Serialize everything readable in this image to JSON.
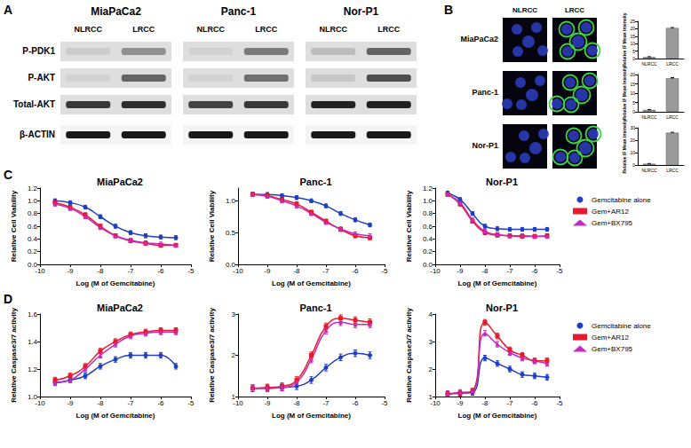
{
  "panel_labels": [
    "A",
    "B",
    "C",
    "D"
  ],
  "blot": {
    "cell_lines": [
      "MiaPaCa2",
      "Panc-1",
      "Nor-P1"
    ],
    "lanes": [
      "NLRCC",
      "LRCC"
    ],
    "rows": [
      "P-PDK1",
      "P-AKT",
      "Total-AKT",
      "β-ACTIN"
    ],
    "band_intensity": [
      [
        [
          0.08,
          0.35
        ],
        [
          0.05,
          0.55
        ],
        [
          0.75,
          0.8
        ],
        [
          0.9,
          0.9
        ]
      ],
      [
        [
          0.05,
          0.45
        ],
        [
          0.05,
          0.5
        ],
        [
          0.7,
          0.75
        ],
        [
          0.9,
          0.9
        ]
      ],
      [
        [
          0.15,
          0.55
        ],
        [
          0.1,
          0.65
        ],
        [
          0.85,
          0.85
        ],
        [
          0.9,
          0.9
        ]
      ]
    ]
  },
  "images": {
    "rows": [
      "MiaPaCa2",
      "Panc-1",
      "Nor-P1"
    ],
    "columns": [
      "NLRCC",
      "LRCC"
    ]
  },
  "chart_data": [
    {
      "type": "bar",
      "categories": [
        "NLRCC",
        "LRCC"
      ],
      "values": [
        1,
        20.5
      ],
      "errors": [
        0.2,
        0.3
      ],
      "color": "#9a9a9a",
      "ylabel": "Relative IF Mean Intensity",
      "ylim": [
        0,
        25
      ],
      "yticks": [
        0,
        5,
        10,
        15,
        20,
        25
      ],
      "grid": false
    },
    {
      "type": "bar",
      "categories": [
        "NLRCC",
        "LRCC"
      ],
      "values": [
        1,
        18
      ],
      "errors": [
        0.2,
        0.3
      ],
      "color": "#9a9a9a",
      "ylabel": "Relative IF Mean Intensity",
      "ylim": [
        0,
        20
      ],
      "yticks": [
        0,
        5,
        10,
        15,
        20
      ],
      "grid": false
    },
    {
      "type": "bar",
      "categories": [
        "NLRCC",
        "LRCC"
      ],
      "values": [
        1,
        26
      ],
      "errors": [
        0.2,
        0.3
      ],
      "color": "#9a9a9a",
      "ylabel": "Relative IF Mean Intensity",
      "ylim": [
        0,
        30
      ],
      "yticks": [
        0,
        10,
        20,
        30
      ],
      "grid": false
    },
    {
      "type": "line",
      "title": "MiaPaCa2",
      "xlabel": "Log (M of Gemcitabine)",
      "ylabel": "Relative Cell Viability",
      "x": [
        -9.5,
        -9,
        -8.5,
        -8,
        -7.5,
        -7,
        -6.5,
        -6,
        -5.5
      ],
      "xlim": [
        -10,
        -5
      ],
      "xticks": [
        -10,
        -9,
        -8,
        -7,
        -6,
        -5
      ],
      "ylim": [
        0,
        1.2
      ],
      "yticks": [
        {
          "value": 0,
          "label": "0.0"
        },
        {
          "value": 0.2,
          "label": "0.2"
        },
        {
          "value": 0.4,
          "label": "0.4"
        },
        {
          "value": 0.6,
          "label": "0.6"
        },
        {
          "value": 0.8,
          "label": "0.8"
        },
        {
          "value": 1,
          "label": "1.0"
        },
        {
          "value": 1.2,
          "label": "1.2"
        }
      ],
      "grid": false,
      "series": [
        {
          "name": "Gemcitabine alone",
          "color": "#1f3fbf",
          "marker": "circle",
          "values": [
            1.0,
            0.97,
            0.9,
            0.75,
            0.6,
            0.5,
            0.45,
            0.43,
            0.42
          ],
          "errors": [
            0.03,
            0.03,
            0.03,
            0.03,
            0.03,
            0.03,
            0.03,
            0.03,
            0.03
          ]
        },
        {
          "name": "Gem+AR12",
          "color": "#e8192c",
          "marker": "square",
          "values": [
            0.97,
            0.9,
            0.78,
            0.6,
            0.45,
            0.37,
            0.33,
            0.3,
            0.3
          ],
          "errors": [
            0.03,
            0.03,
            0.03,
            0.03,
            0.03,
            0.03,
            0.03,
            0.03,
            0.03
          ]
        },
        {
          "name": "Gem+BX795",
          "color": "#c42bc4",
          "marker": "triangle",
          "values": [
            0.95,
            0.88,
            0.75,
            0.58,
            0.45,
            0.38,
            0.34,
            0.32,
            0.3
          ],
          "errors": [
            0.03,
            0.03,
            0.03,
            0.03,
            0.03,
            0.03,
            0.03,
            0.03,
            0.03
          ]
        }
      ]
    },
    {
      "type": "line",
      "title": "Panc-1",
      "xlabel": "Log (M of Gemcitabine)",
      "ylabel": "Relative Cell Viability",
      "x": [
        -9.5,
        -9,
        -8.5,
        -8,
        -7.5,
        -7,
        -6.5,
        -6,
        -5.5
      ],
      "xlim": [
        -10,
        -5
      ],
      "xticks": [
        -10,
        -9,
        -8,
        -7,
        -6,
        -5
      ],
      "ylim": [
        0,
        1.2
      ],
      "yticks": [
        {
          "value": 0,
          "label": "0.0"
        },
        {
          "value": 0.5,
          "label": "0.5"
        },
        {
          "value": 1,
          "label": "1.0"
        }
      ],
      "grid": false,
      "series": [
        {
          "name": "Gemcitabine alone",
          "color": "#1f3fbf",
          "marker": "circle",
          "values": [
            1.1,
            1.1,
            1.08,
            1.05,
            1.0,
            0.92,
            0.8,
            0.7,
            0.62
          ],
          "errors": [
            0.03,
            0.03,
            0.03,
            0.03,
            0.03,
            0.03,
            0.03,
            0.03,
            0.03
          ]
        },
        {
          "name": "Gem+AR12",
          "color": "#e8192c",
          "marker": "square",
          "values": [
            1.1,
            1.08,
            1.02,
            0.95,
            0.82,
            0.68,
            0.55,
            0.45,
            0.42
          ],
          "errors": [
            0.03,
            0.03,
            0.03,
            0.03,
            0.03,
            0.03,
            0.03,
            0.03,
            0.03
          ]
        },
        {
          "name": "Gem+BX795",
          "color": "#c42bc4",
          "marker": "triangle",
          "values": [
            1.1,
            1.07,
            1.0,
            0.92,
            0.8,
            0.66,
            0.56,
            0.48,
            0.45
          ],
          "errors": [
            0.03,
            0.03,
            0.03,
            0.03,
            0.03,
            0.03,
            0.03,
            0.03,
            0.03
          ]
        }
      ]
    },
    {
      "type": "line",
      "title": "Nor-P1",
      "xlabel": "Log (M of Gemcitabine)",
      "ylabel": "Relative Cell Viability",
      "x": [
        -9.5,
        -9,
        -8.5,
        -8,
        -7.5,
        -7,
        -6.5,
        -6,
        -5.5
      ],
      "xlim": [
        -10,
        -5
      ],
      "xticks": [
        -10,
        -9,
        -8,
        -7,
        -6,
        -5
      ],
      "ylim": [
        0,
        1.2
      ],
      "yticks": [
        {
          "value": 0,
          "label": "0.0"
        },
        {
          "value": 0.2,
          "label": "0.2"
        },
        {
          "value": 0.4,
          "label": "0.4"
        },
        {
          "value": 0.6,
          "label": "0.6"
        },
        {
          "value": 0.8,
          "label": "0.8"
        },
        {
          "value": 1,
          "label": "1.0"
        },
        {
          "value": 1.2,
          "label": "1.2"
        }
      ],
      "grid": false,
      "legend": "right",
      "series": [
        {
          "name": "Gemcitabine alone",
          "color": "#1f3fbf",
          "marker": "circle",
          "values": [
            1.12,
            1.02,
            0.8,
            0.6,
            0.56,
            0.55,
            0.55,
            0.55,
            0.55
          ],
          "errors": [
            0.03,
            0.03,
            0.03,
            0.03,
            0.03,
            0.03,
            0.03,
            0.03,
            0.03
          ]
        },
        {
          "name": "Gem+AR12",
          "color": "#e8192c",
          "marker": "square",
          "values": [
            1.1,
            0.95,
            0.68,
            0.5,
            0.46,
            0.45,
            0.44,
            0.44,
            0.45
          ],
          "errors": [
            0.03,
            0.03,
            0.03,
            0.03,
            0.03,
            0.03,
            0.03,
            0.03,
            0.03
          ]
        },
        {
          "name": "Gem+BX795",
          "color": "#c42bc4",
          "marker": "triangle",
          "values": [
            1.1,
            0.97,
            0.7,
            0.52,
            0.47,
            0.45,
            0.45,
            0.44,
            0.44
          ],
          "errors": [
            0.03,
            0.03,
            0.03,
            0.03,
            0.03,
            0.03,
            0.03,
            0.03,
            0.03
          ]
        }
      ]
    },
    {
      "type": "line",
      "title": "MiaPaCa2",
      "xlabel": "Log (M of Gemcitabine)",
      "ylabel": "Relative Caspase3/7 activity",
      "x": [
        -9.5,
        -9,
        -8.5,
        -8,
        -7.5,
        -7,
        -6.5,
        -6,
        -5.5
      ],
      "xlim": [
        -10,
        -5
      ],
      "xticks": [
        -10,
        -9,
        -8,
        -7,
        -6,
        -5
      ],
      "ylim": [
        1,
        1.6
      ],
      "yticks": [
        {
          "value": 1,
          "label": "1.0"
        },
        {
          "value": 1.2,
          "label": "1.2"
        },
        {
          "value": 1.4,
          "label": "1.4"
        },
        {
          "value": 1.6,
          "label": "1.6"
        }
      ],
      "grid": false,
      "series": [
        {
          "name": "Gemcitabine alone",
          "color": "#1f3fbf",
          "marker": "circle",
          "values": [
            1.1,
            1.12,
            1.15,
            1.22,
            1.27,
            1.3,
            1.3,
            1.3,
            1.22
          ],
          "errors": [
            0.02,
            0.02,
            0.02,
            0.02,
            0.02,
            0.02,
            0.02,
            0.02,
            0.02
          ]
        },
        {
          "name": "Gem+AR12",
          "color": "#e8192c",
          "marker": "square",
          "values": [
            1.12,
            1.15,
            1.22,
            1.33,
            1.4,
            1.45,
            1.47,
            1.48,
            1.48
          ],
          "errors": [
            0.02,
            0.02,
            0.02,
            0.02,
            0.02,
            0.02,
            0.02,
            0.02,
            0.02
          ]
        },
        {
          "name": "Gem+BX795",
          "color": "#c42bc4",
          "marker": "triangle",
          "values": [
            1.1,
            1.12,
            1.2,
            1.3,
            1.38,
            1.44,
            1.46,
            1.47,
            1.47
          ],
          "errors": [
            0.02,
            0.02,
            0.02,
            0.02,
            0.02,
            0.02,
            0.02,
            0.02,
            0.02
          ]
        }
      ]
    },
    {
      "type": "line",
      "title": "Panc-1",
      "xlabel": "Log (M of Gemcitabine)",
      "ylabel": "Relative Caspase3/7 activity",
      "x": [
        -9.5,
        -9,
        -8.5,
        -8,
        -7.5,
        -7,
        -6.5,
        -6,
        -5.5
      ],
      "xlim": [
        -10,
        -5
      ],
      "xticks": [
        -10,
        -9,
        -8,
        -7,
        -6,
        -5
      ],
      "ylim": [
        1,
        3
      ],
      "yticks": [
        1,
        2,
        3
      ],
      "grid": false,
      "series": [
        {
          "name": "Gemcitabine alone",
          "color": "#1f3fbf",
          "marker": "circle",
          "values": [
            1.2,
            1.2,
            1.22,
            1.25,
            1.4,
            1.7,
            1.95,
            2.05,
            2.0
          ],
          "errors": [
            0.08,
            0.08,
            0.08,
            0.08,
            0.08,
            0.08,
            0.08,
            0.08,
            0.08
          ]
        },
        {
          "name": "Gem+AR12",
          "color": "#e8192c",
          "marker": "square",
          "values": [
            1.2,
            1.22,
            1.25,
            1.4,
            2.0,
            2.7,
            2.9,
            2.85,
            2.8
          ],
          "errors": [
            0.08,
            0.08,
            0.08,
            0.08,
            0.08,
            0.08,
            0.08,
            0.08,
            0.08
          ]
        },
        {
          "name": "Gem+BX795",
          "color": "#c42bc4",
          "marker": "triangle",
          "values": [
            1.2,
            1.2,
            1.22,
            1.35,
            1.9,
            2.6,
            2.8,
            2.75,
            2.75
          ],
          "errors": [
            0.08,
            0.08,
            0.08,
            0.08,
            0.08,
            0.08,
            0.08,
            0.08,
            0.08
          ]
        }
      ]
    },
    {
      "type": "line",
      "title": "Nor-P1",
      "xlabel": "Log (M of Gemcitabine)",
      "ylabel": "Relative Caspase3/7 activity",
      "x": [
        -9.5,
        -9,
        -8.5,
        -8,
        -7.5,
        -7,
        -6.5,
        -6,
        -5.5
      ],
      "xlim": [
        -10,
        -5
      ],
      "xticks": [
        -10,
        -9,
        -8,
        -7,
        -6,
        -5
      ],
      "ylim": [
        1,
        4
      ],
      "yticks": [
        1,
        2,
        3,
        4
      ],
      "grid": false,
      "legend": "right",
      "series": [
        {
          "name": "Gemcitabine alone",
          "color": "#1f3fbf",
          "marker": "circle",
          "values": [
            1.1,
            1.12,
            1.15,
            2.4,
            2.2,
            2.0,
            1.8,
            1.75,
            1.7
          ],
          "errors": [
            0.1,
            0.1,
            0.1,
            0.1,
            0.1,
            0.1,
            0.1,
            0.1,
            0.1
          ]
        },
        {
          "name": "Gem+AR12",
          "color": "#e8192c",
          "marker": "square",
          "values": [
            1.1,
            1.12,
            1.2,
            3.7,
            3.2,
            2.7,
            2.5,
            2.3,
            2.3
          ],
          "errors": [
            0.1,
            0.1,
            0.1,
            0.1,
            0.1,
            0.1,
            0.1,
            0.1,
            0.1
          ]
        },
        {
          "name": "Gem+BX795",
          "color": "#c42bc4",
          "marker": "triangle",
          "values": [
            1.1,
            1.15,
            1.2,
            3.3,
            2.9,
            2.6,
            2.4,
            2.3,
            2.2
          ],
          "errors": [
            0.1,
            0.1,
            0.1,
            0.1,
            0.1,
            0.1,
            0.1,
            0.1,
            0.1
          ]
        }
      ]
    }
  ]
}
